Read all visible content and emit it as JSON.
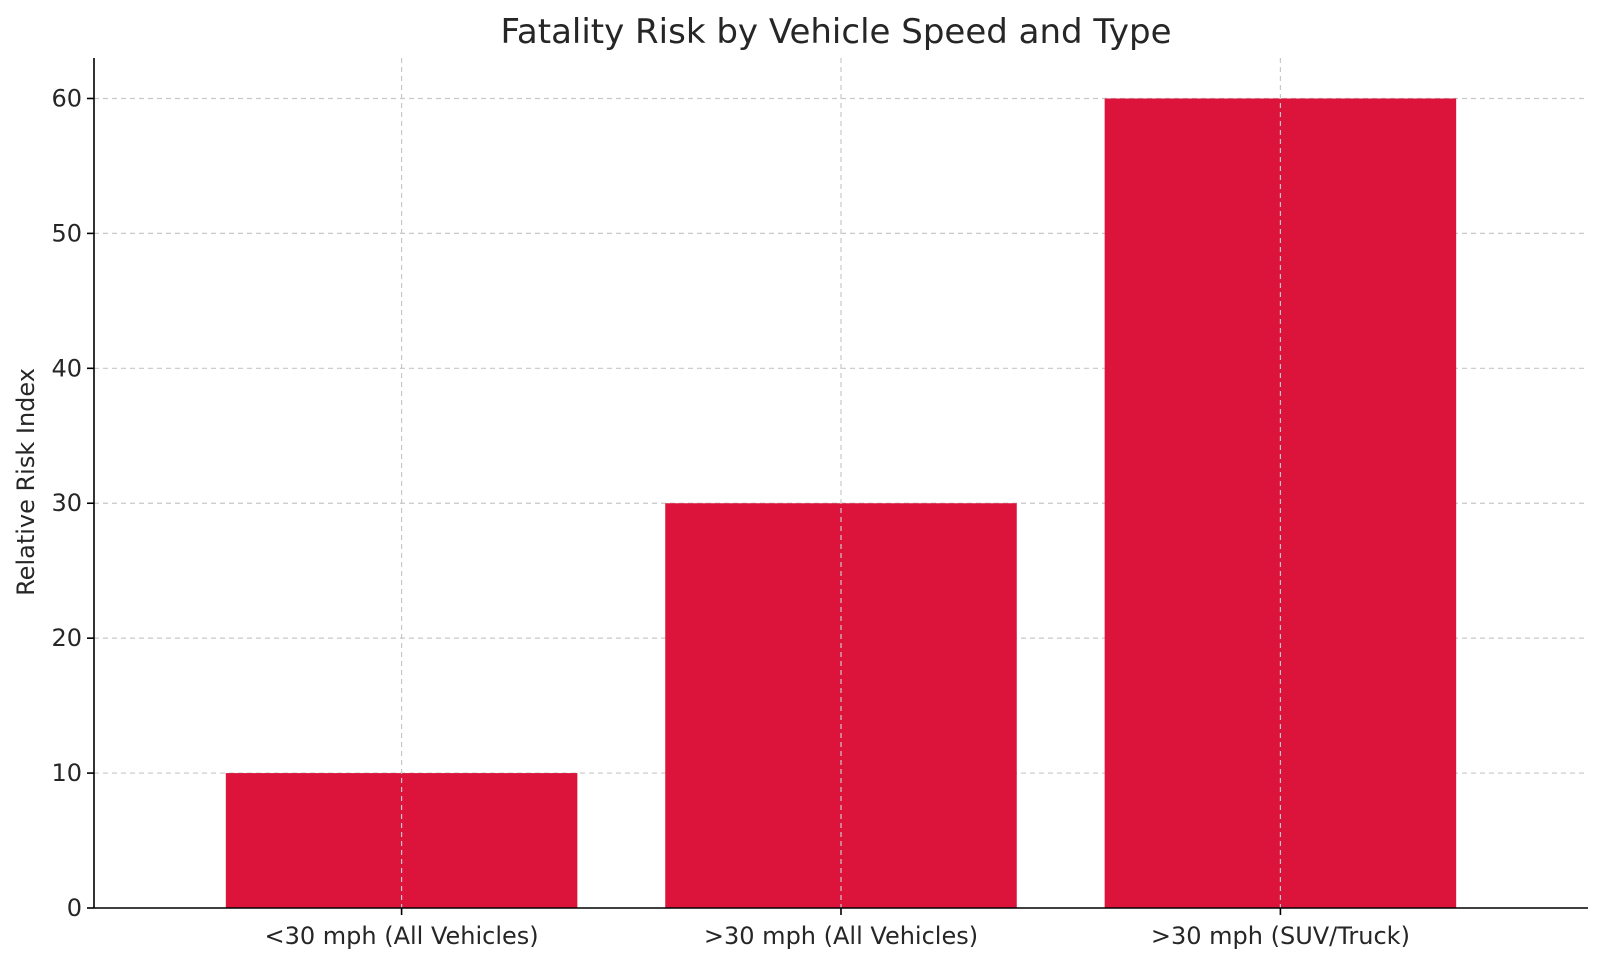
{
  "chart_data": {
    "type": "bar",
    "title": "Fatality Risk by Vehicle Speed and Type",
    "xlabel": "",
    "ylabel": "Relative Risk Index",
    "categories": [
      "<30 mph (All Vehicles)",
      ">30 mph (All Vehicles)",
      ">30 mph (SUV/Truck)"
    ],
    "values": [
      10,
      30,
      60
    ],
    "ylim": [
      0,
      63
    ],
    "yticks": [
      0,
      10,
      20,
      30,
      40,
      50,
      60
    ],
    "grid": true,
    "bar_color": "#DC143C"
  }
}
